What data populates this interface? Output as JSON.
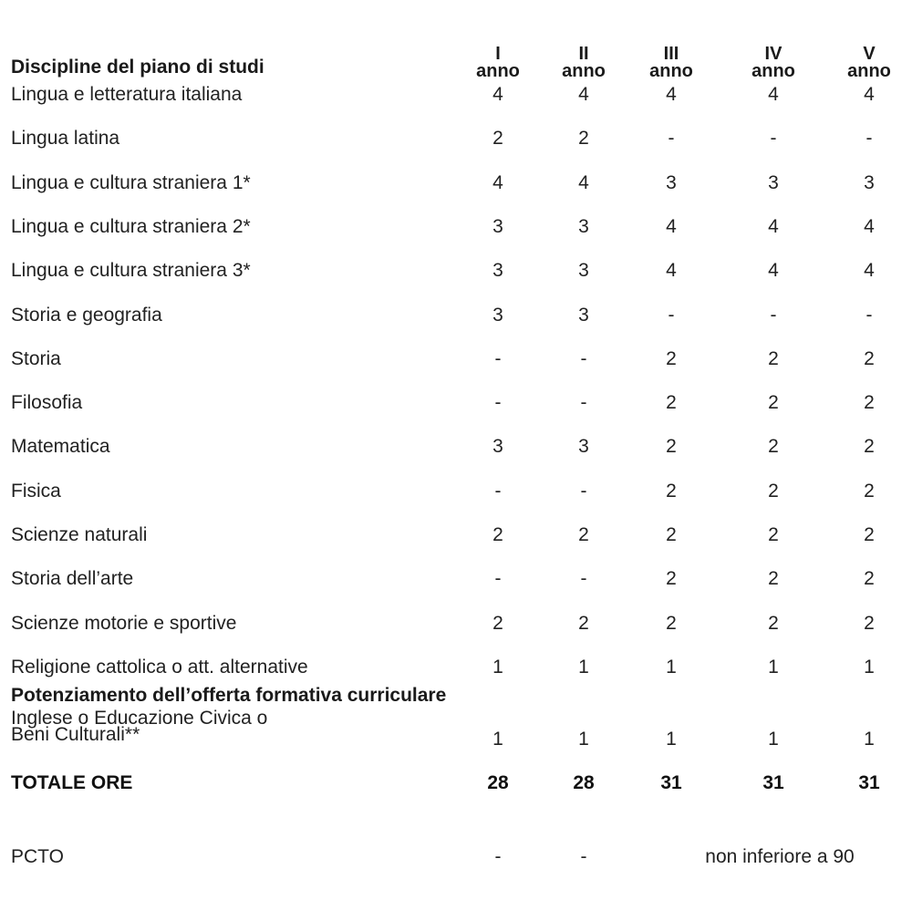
{
  "header": {
    "title": "Discipline del piano di studi",
    "years": [
      {
        "roman": "I",
        "word": "anno"
      },
      {
        "roman": "II",
        "word": "anno"
      },
      {
        "roman": "III",
        "word": "anno"
      },
      {
        "roman": "IV",
        "word": "anno"
      },
      {
        "roman": "V",
        "word": "anno"
      }
    ]
  },
  "rows": [
    {
      "label": "Lingua e letteratura italiana",
      "values": [
        "4",
        "4",
        "4",
        "4",
        "4"
      ]
    },
    {
      "label": "Lingua latina",
      "values": [
        "2",
        "2",
        "-",
        "-",
        "-"
      ]
    },
    {
      "label": "Lingua e cultura straniera 1*",
      "values": [
        "4",
        "4",
        "3",
        "3",
        "3"
      ]
    },
    {
      "label": "Lingua e cultura straniera 2*",
      "values": [
        "3",
        "3",
        "4",
        "4",
        "4"
      ]
    },
    {
      "label": "Lingua e cultura straniera 3*",
      "values": [
        "3",
        "3",
        "4",
        "4",
        "4"
      ]
    },
    {
      "label": "Storia e geografia",
      "values": [
        "3",
        "3",
        "-",
        "-",
        "-"
      ]
    },
    {
      "label": "Storia",
      "values": [
        "-",
        "-",
        "2",
        "2",
        "2"
      ]
    },
    {
      "label": "Filosofia",
      "values": [
        "-",
        "-",
        "2",
        "2",
        "2"
      ]
    },
    {
      "label": "Matematica",
      "values": [
        "3",
        "3",
        "2",
        "2",
        "2"
      ]
    },
    {
      "label": "Fisica",
      "values": [
        "-",
        "-",
        "2",
        "2",
        "2"
      ]
    },
    {
      "label": "Scienze naturali",
      "values": [
        "2",
        "2",
        "2",
        "2",
        "2"
      ]
    },
    {
      "label": "Storia dell’arte",
      "values": [
        "-",
        "-",
        "2",
        "2",
        "2"
      ]
    },
    {
      "label": "Scienze motorie e sportive",
      "values": [
        "2",
        "2",
        "2",
        "2",
        "2"
      ]
    },
    {
      "label": "Religione cattolica o att. alternative",
      "values": [
        "1",
        "1",
        "1",
        "1",
        "1"
      ]
    }
  ],
  "potenziamento": {
    "title": "Potenziamento dell’offerta formativa curriculare",
    "label_line1": "Inglese o Educazione Civica o",
    "label_line2": "Beni Culturali**",
    "values": [
      "1",
      "1",
      "1",
      "1",
      "1"
    ]
  },
  "totale": {
    "label": "TOTALE ORE",
    "values": [
      "28",
      "28",
      "31",
      "31",
      "31"
    ]
  },
  "pcto": {
    "label": "PCTO",
    "values": [
      "-",
      "-"
    ],
    "span_text": "non inferiore a 90"
  }
}
